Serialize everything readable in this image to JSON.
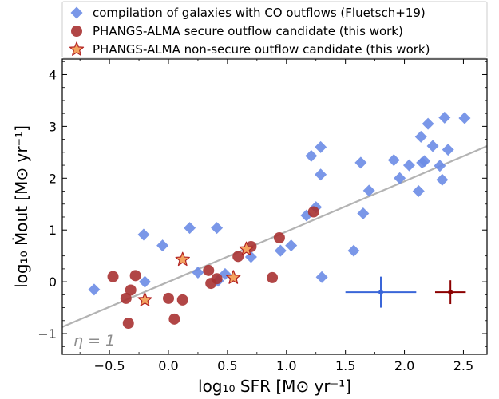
{
  "chart_data": {
    "type": "scatter",
    "xlabel": "log₁₀ SFR [M⊙ yr⁻¹]",
    "ylabel": "log₁₀ Ṁout [M⊙ yr⁻¹]",
    "xlim": [
      -0.9,
      2.7
    ],
    "ylim": [
      -1.4,
      4.3
    ],
    "x_ticks": [
      -0.5,
      0.0,
      0.5,
      1.0,
      1.5,
      2.0,
      2.5
    ],
    "x_tick_labels": [
      "−0.5",
      "0.0",
      "0.5",
      "1.0",
      "1.5",
      "2.0",
      "2.5"
    ],
    "y_ticks": [
      -1,
      0,
      1,
      2,
      3,
      4
    ],
    "y_tick_labels": [
      "−1",
      "0",
      "1",
      "2",
      "3",
      "4"
    ],
    "legend_position": "top",
    "series": [
      {
        "name": "compilation of galaxies with CO outflows (Fluetsch+19)",
        "marker": "diamond",
        "color": "#6b8ce6",
        "points": [
          [
            -0.63,
            -0.15
          ],
          [
            -0.2,
            0.0
          ],
          [
            -0.21,
            0.91
          ],
          [
            -0.05,
            0.7
          ],
          [
            0.18,
            1.04
          ],
          [
            0.25,
            0.18
          ],
          [
            0.41,
            1.04
          ],
          [
            0.42,
            0.02
          ],
          [
            0.48,
            0.15
          ],
          [
            0.7,
            0.48
          ],
          [
            0.95,
            0.6
          ],
          [
            1.04,
            0.7
          ],
          [
            1.17,
            1.28
          ],
          [
            1.21,
            2.43
          ],
          [
            1.25,
            1.44
          ],
          [
            1.29,
            2.6
          ],
          [
            1.29,
            2.07
          ],
          [
            1.3,
            0.09
          ],
          [
            1.57,
            0.6
          ],
          [
            1.63,
            2.3
          ],
          [
            1.65,
            1.32
          ],
          [
            1.7,
            1.76
          ],
          [
            1.91,
            2.35
          ],
          [
            1.96,
            2.0
          ],
          [
            2.04,
            2.25
          ],
          [
            2.12,
            1.75
          ],
          [
            2.14,
            2.8
          ],
          [
            2.15,
            2.3
          ],
          [
            2.17,
            2.33
          ],
          [
            2.2,
            3.05
          ],
          [
            2.24,
            2.62
          ],
          [
            2.3,
            2.24
          ],
          [
            2.32,
            1.97
          ],
          [
            2.34,
            3.17
          ],
          [
            2.37,
            2.55
          ],
          [
            2.51,
            3.16
          ]
        ]
      },
      {
        "name": "PHANGS-ALMA secure outflow candidate (this work)",
        "marker": "circle",
        "color": "#a83232",
        "points": [
          [
            -0.47,
            0.1
          ],
          [
            -0.36,
            -0.32
          ],
          [
            -0.34,
            -0.8
          ],
          [
            -0.32,
            -0.16
          ],
          [
            -0.28,
            0.12
          ],
          [
            0.0,
            -0.32
          ],
          [
            0.05,
            -0.72
          ],
          [
            0.12,
            -0.35
          ],
          [
            0.34,
            0.22
          ],
          [
            0.36,
            -0.03
          ],
          [
            0.41,
            0.06
          ],
          [
            0.59,
            0.49
          ],
          [
            0.7,
            0.68
          ],
          [
            0.88,
            0.08
          ],
          [
            0.94,
            0.85
          ],
          [
            1.23,
            1.35
          ]
        ]
      },
      {
        "name": "PHANGS-ALMA non-secure outflow candidate (this work)",
        "marker": "star",
        "color": "#f4a460",
        "edge_color": "#b22222",
        "points": [
          [
            -0.2,
            -0.35
          ],
          [
            0.12,
            0.43
          ],
          [
            0.55,
            0.08
          ],
          [
            0.66,
            0.63
          ]
        ]
      }
    ],
    "fit_line": {
      "label": "η = 1",
      "slope": 0.97,
      "intercept": 0.0,
      "color": "#b3b3b3"
    },
    "error_bars": [
      {
        "x": 1.8,
        "y": -0.2,
        "xerr": 0.3,
        "yerr": 0.3,
        "color": "#3a66d8"
      },
      {
        "x": 2.39,
        "y": -0.2,
        "xerr": 0.13,
        "yerr": 0.23,
        "color": "#8b0000"
      }
    ]
  }
}
